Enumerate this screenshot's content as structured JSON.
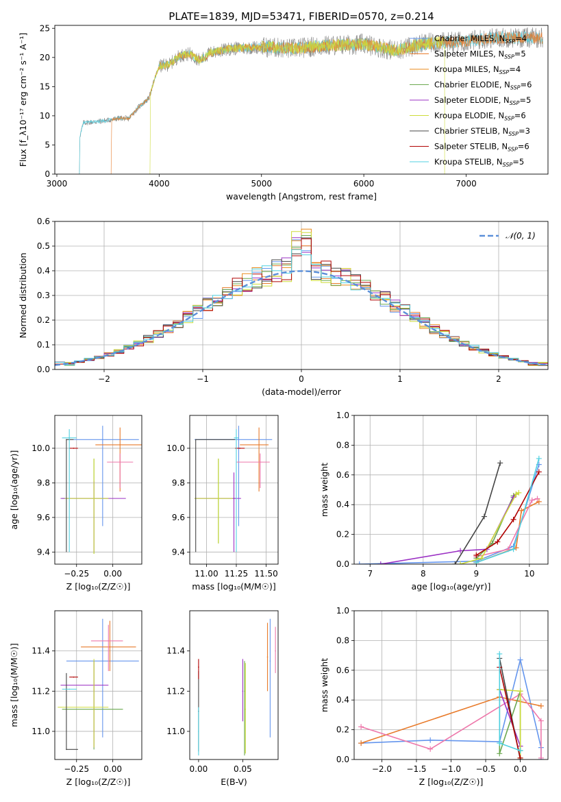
{
  "figure": {
    "title": "PLATE=1839, MJD=53471, FIBERID=0570, z=0.214"
  },
  "colors": {
    "model1": "#6495ed",
    "model2": "#e87a2a",
    "model3": "#e8891a",
    "model4": "#6aa84f",
    "model5": "#9b30c4",
    "model6": "#cddc39",
    "model7": "#444444",
    "model8": "#b00000",
    "model9": "#4fd0e0",
    "extra": "#ee77aa",
    "grid": "#b0b0b0",
    "normal": "#5b8fd9"
  },
  "chart_data": [
    {
      "id": "spectrum",
      "type": "line",
      "xlabel": "wavelength [Angstrom, rest frame]",
      "ylabel": "Flux [f_λ10⁻¹⁷ erg cm⁻² s⁻¹ A⁻¹]",
      "xlim": [
        2980,
        7800
      ],
      "ylim": [
        0,
        25.5
      ],
      "xticks": [
        3000,
        4000,
        5000,
        6000,
        7000
      ],
      "yticks": [
        0,
        5,
        10,
        15,
        20,
        25
      ],
      "grid": false,
      "legend_position": "top-right",
      "legend": [
        {
          "text": "Chabrier MILES, N",
          "sub": "SSP",
          "tail": "=4",
          "color": "#6495ed"
        },
        {
          "text": "Salpeter MILES, N",
          "sub": "SSP",
          "tail": "=5",
          "color": "#e87a2a"
        },
        {
          "text": "Kroupa MILES, N",
          "sub": "SSP",
          "tail": "=4",
          "color": "#e8891a"
        },
        {
          "text": "Chabrier ELODIE, N",
          "sub": "SSP",
          "tail": "=6",
          "color": "#6aa84f"
        },
        {
          "text": "Salpeter ELODIE, N",
          "sub": "SSP",
          "tail": "=5",
          "color": "#9b30c4"
        },
        {
          "text": "Kroupa ELODIE, N",
          "sub": "SSP",
          "tail": "=6",
          "color": "#cddc39"
        },
        {
          "text": "Chabrier STELIB, N",
          "sub": "SSP",
          "tail": "=3",
          "color": "#444444"
        },
        {
          "text": "Salpeter STELIB, N",
          "sub": "SSP",
          "tail": "=6",
          "color": "#b00000"
        },
        {
          "text": "Kroupa STELIB, N",
          "sub": "SSP",
          "tail": "=5",
          "color": "#4fd0e0"
        }
      ],
      "series": [
        {
          "color": "#808080",
          "x_start": 3220,
          "x_end": 7750
        },
        {
          "color": "#4fd0e0",
          "x_start": 3220,
          "x_end": 7750
        },
        {
          "color": "#e87a2a",
          "x_start": 3530,
          "x_end": 7750
        },
        {
          "color": "#cddc39",
          "x_start": 3910,
          "x_end": 6790
        }
      ],
      "continuum_points": [
        [
          3220,
          0
        ],
        [
          3225,
          6.5
        ],
        [
          3260,
          8.8
        ],
        [
          3400,
          9.0
        ],
        [
          3520,
          9.3
        ],
        [
          3620,
          9.6
        ],
        [
          3700,
          9.5
        ],
        [
          3800,
          11.5
        ],
        [
          3900,
          13
        ],
        [
          3950,
          16
        ],
        [
          4000,
          18.5
        ],
        [
          4100,
          18.8
        ],
        [
          4200,
          20.3
        ],
        [
          4300,
          20.6
        ],
        [
          4400,
          19.5
        ],
        [
          4500,
          20.8
        ],
        [
          4700,
          21.5
        ],
        [
          5000,
          21.8
        ],
        [
          5300,
          21.5
        ],
        [
          5600,
          22.0
        ],
        [
          6000,
          22.3
        ],
        [
          6300,
          21.2
        ],
        [
          6600,
          22.4
        ],
        [
          7000,
          22.8
        ],
        [
          7300,
          23.4
        ],
        [
          7700,
          23.4
        ]
      ]
    },
    {
      "id": "residuals",
      "type": "histogram",
      "xlabel": "(data-model)/error",
      "ylabel": "Normed distribution",
      "xlim": [
        -2.5,
        2.5
      ],
      "ylim": [
        0,
        0.6
      ],
      "xticks": [
        -2,
        -1,
        0,
        1,
        2
      ],
      "yticks": [
        0.0,
        0.1,
        0.2,
        0.3,
        0.4,
        0.5,
        0.6
      ],
      "grid": true,
      "legend_position": "top-right",
      "legend_label": "𝒩(0, 1)",
      "bin_width": 0.1,
      "reference_peak": 0.4,
      "histogram_peak": 0.57
    },
    {
      "id": "age-vs-Z",
      "type": "errorbar",
      "xlabel": "Z [log₁₀(Z/Z☉)]",
      "ylabel": "age  [log₁₀(age/yr)]",
      "xlim": [
        -0.4,
        0.2
      ],
      "ylim": [
        9.33,
        10.19
      ],
      "xticks": [
        -0.25,
        0.0
      ],
      "yticks": [
        9.4,
        9.6,
        9.8,
        10.0
      ],
      "grid": true,
      "points": [
        {
          "x": -0.07,
          "y": 10.05,
          "xerr": [
            0.2,
            0.25
          ],
          "yerr": [
            0.5,
            0.08
          ],
          "color": "#6495ed"
        },
        {
          "x": 0.05,
          "y": 10.02,
          "xerr": [
            0.17,
            0.15
          ],
          "yerr": [
            0.27,
            0.1
          ],
          "color": "#e87a2a"
        },
        {
          "x": 0.05,
          "y": 9.92,
          "xerr": [
            0.09,
            0.09
          ],
          "yerr": [
            0.15,
            0.05
          ],
          "color": "#ee77aa"
        },
        {
          "x": -0.13,
          "y": 9.71,
          "xerr": [
            0.22,
            0.1
          ],
          "yerr": [
            0.32,
            0.23
          ],
          "color": "#6aa84f"
        },
        {
          "x": -0.13,
          "y": 9.71,
          "xerr": [
            0.23,
            0.22
          ],
          "yerr": [
            0.31,
            0.1
          ],
          "color": "#9b30c4"
        },
        {
          "x": -0.13,
          "y": 9.71,
          "xerr": [
            0.2,
            0.1
          ],
          "yerr": [
            0.32,
            0.23
          ],
          "color": "#cddc39"
        },
        {
          "x": -0.32,
          "y": 10.05,
          "xerr": [
            0.0,
            0.05
          ],
          "yerr": [
            0.65,
            0.0
          ],
          "color": "#444444"
        },
        {
          "x": -0.27,
          "y": 10.0,
          "xerr": [
            0.03,
            0.03
          ],
          "yerr": [
            0.0,
            0.0
          ],
          "color": "#b00000"
        },
        {
          "x": -0.3,
          "y": 10.06,
          "xerr": [
            0.05,
            0.05
          ],
          "yerr": [
            0.66,
            0.05
          ],
          "color": "#4fd0e0"
        }
      ]
    },
    {
      "id": "age-vs-mass",
      "type": "errorbar",
      "xlabel": "mass [log₁₀(M/M☉)]",
      "ylabel": "",
      "xlim": [
        10.86,
        11.6
      ],
      "ylim": [
        9.33,
        10.19
      ],
      "xticks": [
        11.0,
        11.25,
        11.5
      ],
      "yticks": [
        9.4,
        9.6,
        9.8,
        10.0
      ],
      "grid": true,
      "points": [
        {
          "x": 11.27,
          "y": 10.05,
          "xerr": [
            0.37,
            0.28
          ],
          "yerr": [
            0.5,
            0.08
          ],
          "color": "#6495ed"
        },
        {
          "x": 11.44,
          "y": 10.02,
          "xerr": [
            0.16,
            0.08
          ],
          "yerr": [
            0.27,
            0.1
          ],
          "color": "#e87a2a"
        },
        {
          "x": 11.45,
          "y": 9.92,
          "xerr": [
            0.2,
            0.08
          ],
          "yerr": [
            0.15,
            0.05
          ],
          "color": "#ee77aa"
        },
        {
          "x": 11.1,
          "y": 9.71,
          "xerr": [
            0.2,
            0.15
          ],
          "yerr": [
            0.26,
            0.23
          ],
          "color": "#6aa84f"
        },
        {
          "x": 11.23,
          "y": 9.71,
          "xerr": [
            0.33,
            0.06
          ],
          "yerr": [
            0.31,
            0.15
          ],
          "color": "#9b30c4"
        },
        {
          "x": 11.1,
          "y": 9.71,
          "xerr": [
            0.2,
            0.12
          ],
          "yerr": [
            0.26,
            0.23
          ],
          "color": "#cddc39"
        },
        {
          "x": 10.91,
          "y": 10.05,
          "xerr": [
            0.0,
            0.33
          ],
          "yerr": [
            0.65,
            0.0
          ],
          "color": "#444444"
        },
        {
          "x": 11.28,
          "y": 10.0,
          "xerr": [
            0.04,
            0.04
          ],
          "yerr": [
            0.0,
            0.0
          ],
          "color": "#b00000"
        },
        {
          "x": 11.25,
          "y": 10.06,
          "xerr": [
            0.02,
            0.02
          ],
          "yerr": [
            0.66,
            0.05
          ],
          "color": "#4fd0e0"
        }
      ]
    },
    {
      "id": "weight-vs-age",
      "type": "line",
      "xlabel": "age  [log₁₀(age/yr)]",
      "ylabel": "mass weight",
      "xlim": [
        6.7,
        10.35
      ],
      "ylim": [
        0,
        1.0
      ],
      "xticks": [
        7,
        8,
        9,
        10
      ],
      "yticks": [
        0.0,
        0.2,
        0.4,
        0.6,
        0.8,
        1.0
      ],
      "grid": true,
      "series": [
        {
          "color": "#6495ed",
          "x": [
            6.8,
            9.0,
            9.7,
            10.18
          ],
          "y": [
            0.0,
            0.02,
            0.12,
            0.67
          ]
        },
        {
          "color": "#e87a2a",
          "x": [
            9.0,
            9.75,
            9.85,
            10.18
          ],
          "y": [
            0.01,
            0.11,
            0.36,
            0.42
          ]
        },
        {
          "color": "#ee77aa",
          "x": [
            9.0,
            9.6,
            10.05,
            10.15
          ],
          "y": [
            0.05,
            0.1,
            0.43,
            0.44
          ]
        },
        {
          "color": "#6aa84f",
          "x": [
            9.0,
            9.3,
            9.7,
            9.75
          ],
          "y": [
            0.04,
            0.14,
            0.46,
            0.47
          ]
        },
        {
          "color": "#9b30c4",
          "x": [
            7.2,
            8.7,
            9.2,
            9.7,
            9.75
          ],
          "y": [
            0.0,
            0.09,
            0.1,
            0.45,
            0.47
          ]
        },
        {
          "color": "#cddc39",
          "x": [
            8.7,
            9.1,
            9.75,
            9.8
          ],
          "y": [
            0.0,
            0.04,
            0.47,
            0.48
          ]
        },
        {
          "color": "#444444",
          "x": [
            8.6,
            9.15,
            9.45
          ],
          "y": [
            0.0,
            0.32,
            0.68
          ]
        },
        {
          "color": "#b00000",
          "x": [
            9.0,
            9.4,
            9.7,
            10.18
          ],
          "y": [
            0.06,
            0.15,
            0.3,
            0.62
          ]
        },
        {
          "color": "#4fd0e0",
          "x": [
            9.0,
            9.7,
            10.18
          ],
          "y": [
            0.01,
            0.1,
            0.71
          ]
        }
      ]
    },
    {
      "id": "mass-vs-Z",
      "type": "errorbar",
      "xlabel": "Z [log₁₀(Z/Z☉)]",
      "ylabel": "mass [log₁₀(M/M☉)]",
      "xlim": [
        -0.4,
        0.2
      ],
      "ylim": [
        10.86,
        11.6
      ],
      "xticks": [
        -0.25,
        0.0
      ],
      "yticks": [
        11.0,
        11.2,
        11.4
      ],
      "grid": true,
      "points": [
        {
          "x": -0.07,
          "y": 11.35,
          "xerr": [
            0.25,
            0.25
          ],
          "yerr": [
            0.38,
            0.21
          ],
          "color": "#6495ed"
        },
        {
          "x": -0.02,
          "y": 11.42,
          "xerr": [
            0.2,
            0.18
          ],
          "yerr": [
            0.12,
            0.13
          ],
          "color": "#e87a2a"
        },
        {
          "x": -0.03,
          "y": 11.45,
          "xerr": [
            0.12,
            0.1
          ],
          "yerr": [
            0.15,
            0.08
          ],
          "color": "#ee77aa"
        },
        {
          "x": -0.13,
          "y": 11.11,
          "xerr": [
            0.22,
            0.2
          ],
          "yerr": [
            0.2,
            0.24
          ],
          "color": "#6aa84f"
        },
        {
          "x": -0.13,
          "y": 11.23,
          "xerr": [
            0.23,
            0.1
          ],
          "yerr": [
            0.31,
            0.12
          ],
          "color": "#9b30c4"
        },
        {
          "x": -0.13,
          "y": 11.12,
          "xerr": [
            0.25,
            0.1
          ],
          "yerr": [
            0.2,
            0.24
          ],
          "color": "#cddc39"
        },
        {
          "x": -0.32,
          "y": 10.91,
          "xerr": [
            0.0,
            0.08
          ],
          "yerr": [
            0.0,
            0.38
          ],
          "color": "#444444"
        },
        {
          "x": -0.27,
          "y": 11.27,
          "xerr": [
            0.03,
            0.03
          ],
          "yerr": [
            0.0,
            0.0
          ],
          "color": "#b00000"
        },
        {
          "x": -0.3,
          "y": 11.21,
          "xerr": [
            0.05,
            0.05
          ],
          "yerr": [
            0.0,
            0.0
          ],
          "color": "#4fd0e0"
        }
      ]
    },
    {
      "id": "mass-vs-ebv",
      "type": "errorbar",
      "xlabel": "E(B-V)",
      "ylabel": "",
      "xlim": [
        -0.01,
        0.09
      ],
      "ylim": [
        10.86,
        11.6
      ],
      "xticks": [
        0.0,
        0.05
      ],
      "yticks": [
        11.0,
        11.2,
        11.4
      ],
      "grid": false,
      "points": [
        {
          "x": 0.081,
          "y": 11.35,
          "yerr": [
            0.38,
            0.21
          ],
          "color": "#6495ed"
        },
        {
          "x": 0.078,
          "y": 11.37,
          "yerr": [
            0.17,
            0.17
          ],
          "color": "#e87a2a"
        },
        {
          "x": 0.087,
          "y": 11.4,
          "yerr": [
            0.11,
            0.12
          ],
          "color": "#ee77aa"
        },
        {
          "x": 0.052,
          "y": 11.2,
          "yerr": [
            0.32,
            0.15
          ],
          "color": "#6aa84f"
        },
        {
          "x": 0.05,
          "y": 11.2,
          "yerr": [
            0.15,
            0.16
          ],
          "color": "#9b30c4"
        },
        {
          "x": 0.053,
          "y": 11.11,
          "yerr": [
            0.22,
            0.23
          ],
          "color": "#cddc39"
        },
        {
          "x": 0.0,
          "y": 11.1,
          "yerr": [
            0.2,
            0.2
          ],
          "color": "#444444"
        },
        {
          "x": 0.0,
          "y": 11.32,
          "yerr": [
            0.06,
            0.04
          ],
          "color": "#b00000"
        },
        {
          "x": 0.0,
          "y": 11.0,
          "yerr": [
            0.12,
            0.12
          ],
          "color": "#4fd0e0"
        }
      ]
    },
    {
      "id": "weight-vs-Z",
      "type": "line",
      "xlabel": "Z [log₁₀(Z/Z☉)]",
      "ylabel": "mass weight",
      "xlim": [
        -2.4,
        0.4
      ],
      "ylim": [
        0,
        1.0
      ],
      "xticks": [
        -2.0,
        -1.5,
        -1.0,
        -0.5,
        0.0
      ],
      "yticks": [
        0.0,
        0.2,
        0.4,
        0.6,
        0.8,
        1.0
      ],
      "grid": true,
      "series": [
        {
          "color": "#6495ed",
          "x": [
            -2.3,
            -1.3,
            -0.3,
            0.0,
            0.3,
            0.3
          ],
          "y": [
            0.11,
            0.13,
            0.12,
            0.67,
            0.08,
            0.0
          ]
        },
        {
          "color": "#e87a2a",
          "x": [
            -2.3,
            -0.3,
            0.3
          ],
          "y": [
            0.11,
            0.42,
            0.36
          ]
        },
        {
          "color": "#ee77aa",
          "x": [
            -2.3,
            -1.3,
            0.0,
            0.3,
            0.3
          ],
          "y": [
            0.22,
            0.07,
            0.44,
            0.26,
            0.01
          ]
        },
        {
          "color": "#6aa84f",
          "x": [
            -0.3,
            -0.3,
            0.0,
            0.0
          ],
          "y": [
            0.47,
            0.04,
            0.46,
            0.06
          ]
        },
        {
          "color": "#9b30c4",
          "x": [
            -0.3,
            0.0
          ],
          "y": [
            0.47,
            0.09
          ]
        },
        {
          "color": "#cddc39",
          "x": [
            -0.3,
            0.0,
            0.0
          ],
          "y": [
            0.47,
            0.46,
            0.01
          ]
        },
        {
          "color": "#444444",
          "x": [
            -0.3,
            0.0
          ],
          "y": [
            0.68,
            0.0
          ]
        },
        {
          "color": "#b00000",
          "x": [
            -0.3,
            0.0
          ],
          "y": [
            0.62,
            0.01
          ]
        },
        {
          "color": "#4fd0e0",
          "x": [
            -0.3,
            -0.3,
            0.0
          ],
          "y": [
            0.71,
            0.11,
            0.06
          ]
        }
      ]
    }
  ]
}
